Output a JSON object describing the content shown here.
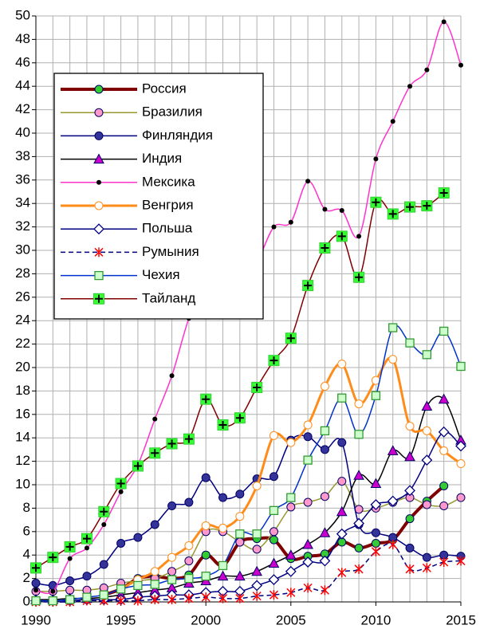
{
  "chart_data": {
    "type": "line",
    "x": [
      1990,
      1991,
      1992,
      1993,
      1994,
      1995,
      1996,
      1997,
      1998,
      1999,
      2000,
      2001,
      2002,
      2003,
      2004,
      2005,
      2006,
      2007,
      2008,
      2009,
      2010,
      2011,
      2012,
      2013,
      2014,
      2015
    ],
    "xlim": [
      1990,
      2015
    ],
    "xticks": [
      1990,
      1995,
      2000,
      2005,
      2010,
      2015
    ],
    "ylim": [
      0,
      50
    ],
    "yticks": [
      0,
      2,
      4,
      6,
      8,
      10,
      12,
      14,
      16,
      18,
      20,
      22,
      24,
      26,
      28,
      30,
      32,
      34,
      36,
      38,
      40,
      42,
      44,
      46,
      48,
      50
    ],
    "grid": true,
    "legend": "upper left",
    "series": [
      {
        "name": "Россия",
        "color": "#800000",
        "width": 4,
        "marker": "circle",
        "marker_color": "#33cc33",
        "values": [
          null,
          null,
          null,
          null,
          0.6,
          1.1,
          2.0,
          2.2,
          2.0,
          2.3,
          4.0,
          3.1,
          5.1,
          5.4,
          5.3,
          3.7,
          3.9,
          4.1,
          5.1,
          4.6,
          5.0,
          5.3,
          7.1,
          8.6,
          9.9,
          null
        ]
      },
      {
        "name": "Бразилия",
        "color": "#999933",
        "width": 1.5,
        "marker": "circle",
        "marker_color": "#ff99cc",
        "values": [
          0.9,
          0.9,
          1.0,
          1.0,
          1.2,
          1.6,
          1.8,
          2.0,
          2.6,
          3.5,
          6.0,
          6.0,
          5.1,
          4.5,
          6.0,
          8.1,
          8.5,
          9.0,
          10.3,
          7.9,
          8.0,
          8.5,
          8.9,
          8.3,
          8.2,
          8.9
        ]
      },
      {
        "name": "Финляндия",
        "color": "#000080",
        "width": 1.5,
        "marker": "circle",
        "marker_color": "#333399",
        "values": [
          1.6,
          1.4,
          1.8,
          2.2,
          3.2,
          5.0,
          5.5,
          6.6,
          8.2,
          8.5,
          10.6,
          8.9,
          9.2,
          10.5,
          10.7,
          13.8,
          14.1,
          13.0,
          13.6,
          6.6,
          5.9,
          5.5,
          4.6,
          3.8,
          4.0,
          3.9
        ]
      },
      {
        "name": "Индия",
        "color": "#000000",
        "width": 1.5,
        "marker": "triangle",
        "marker_color": "#cc00cc",
        "values": [
          0.2,
          0.2,
          0.3,
          0.3,
          0.4,
          0.6,
          0.8,
          1.0,
          1.2,
          1.6,
          1.8,
          2.2,
          2.2,
          2.6,
          3.3,
          4.0,
          4.9,
          5.9,
          7.7,
          10.8,
          10.1,
          12.9,
          12.4,
          16.7,
          17.3,
          13.8
        ]
      },
      {
        "name": "Мексика",
        "color": "#ff33cc",
        "width": 1.5,
        "marker": "dot",
        "marker_color": "#000000",
        "values": [
          1.0,
          0.9,
          3.7,
          4.6,
          6.6,
          9.4,
          11.7,
          15.6,
          19.3,
          24.2,
          27.5,
          26.5,
          27.5,
          29.0,
          32.0,
          32.4,
          35.9,
          33.5,
          33.4,
          31.2,
          37.8,
          41.0,
          44.0,
          45.4,
          49.5,
          45.8
        ]
      },
      {
        "name": "Венгрия",
        "color": "#ff8c1a",
        "width": 3,
        "marker": "circle",
        "marker_color": "#ffffff",
        "values": [
          null,
          null,
          null,
          null,
          null,
          1.1,
          1.9,
          2.6,
          3.8,
          4.8,
          6.5,
          6.3,
          7.3,
          9.9,
          14.2,
          13.6,
          15.1,
          18.4,
          20.3,
          16.9,
          18.9,
          20.7,
          15.0,
          14.6,
          12.9,
          11.8
        ]
      },
      {
        "name": "Польша",
        "color": "#000080",
        "width": 1.5,
        "marker": "diamond",
        "marker_color": "#ffffff",
        "values": [
          0.1,
          0.1,
          0.1,
          0.2,
          0.2,
          0.2,
          0.4,
          0.5,
          0.6,
          0.6,
          0.8,
          0.9,
          0.9,
          1.4,
          1.9,
          2.6,
          3.4,
          3.5,
          5.8,
          6.7,
          8.3,
          8.6,
          9.5,
          12.1,
          14.5,
          13.3
        ]
      },
      {
        "name": "Румыния",
        "color": "#000080",
        "width": 1.5,
        "dash": true,
        "marker": "asterisk",
        "marker_color": "#ff0000",
        "values": [
          0.0,
          0.0,
          0.0,
          0.1,
          0.1,
          0.1,
          0.1,
          0.2,
          0.2,
          0.3,
          0.4,
          0.3,
          0.3,
          0.5,
          0.6,
          0.8,
          1.2,
          1.0,
          2.5,
          2.8,
          4.3,
          4.9,
          2.8,
          2.9,
          3.4,
          3.5
        ]
      },
      {
        "name": "Чехия",
        "color": "#0033cc",
        "width": 1.5,
        "marker": "square",
        "marker_color": "#ccffcc",
        "values": [
          0.1,
          0.1,
          0.2,
          0.4,
          0.6,
          1.1,
          1.4,
          1.5,
          1.9,
          2.0,
          2.2,
          3.1,
          5.8,
          5.8,
          7.8,
          8.9,
          12.1,
          14.6,
          17.4,
          14.3,
          17.6,
          23.4,
          22.1,
          21.1,
          23.1,
          20.1
        ]
      },
      {
        "name": "Тайланд",
        "color": "#800000",
        "width": 1.5,
        "marker": "plus-square",
        "marker_color": "#33ff33",
        "values": [
          2.9,
          3.8,
          4.7,
          5.4,
          7.7,
          10.1,
          11.6,
          12.7,
          13.5,
          13.9,
          17.3,
          15.1,
          15.7,
          18.3,
          20.6,
          22.5,
          27.0,
          30.2,
          31.2,
          27.7,
          34.1,
          33.1,
          33.7,
          33.8,
          34.9,
          null
        ]
      }
    ]
  }
}
